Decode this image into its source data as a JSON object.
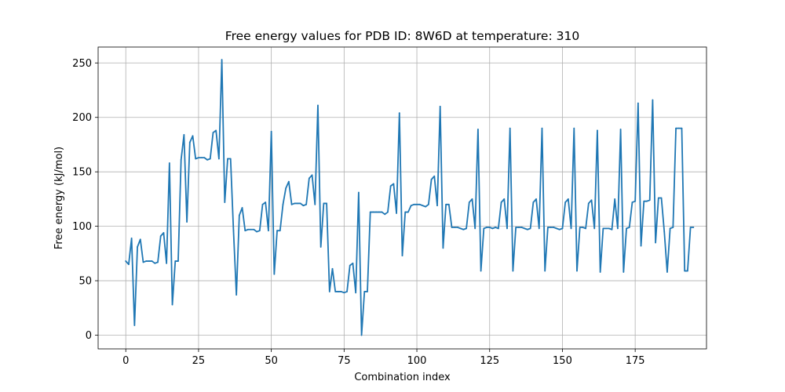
{
  "chart_data": {
    "type": "line",
    "title": "Free energy values for PDB ID: 8W6D at temperature: 310",
    "xlabel": "Combination index",
    "ylabel": "Free energy (kJ/mol)",
    "xlim": [
      -9.5,
      199.5
    ],
    "ylim": [
      -12.6,
      264.6
    ],
    "xticks": [
      0,
      25,
      50,
      75,
      100,
      125,
      150,
      175
    ],
    "yticks": [
      0,
      50,
      100,
      150,
      200,
      250
    ],
    "grid": true,
    "line_color": "#1f77b4",
    "series": [
      {
        "values": [
          68,
          65,
          89,
          9,
          81,
          88,
          67,
          68,
          68,
          68,
          66,
          67,
          91,
          94,
          66,
          158,
          28,
          68,
          68,
          161,
          184,
          104,
          177,
          183,
          162,
          163,
          163,
          163,
          161,
          162,
          186,
          188,
          162,
          253,
          122,
          162,
          162,
          96,
          37,
          110,
          117,
          96,
          97,
          97,
          97,
          95,
          96,
          120,
          122,
          96,
          187,
          56,
          96,
          96,
          120,
          135,
          141,
          120,
          121,
          121,
          121,
          119,
          120,
          144,
          147,
          120,
          211,
          81,
          121,
          121,
          40,
          61,
          40,
          40,
          40,
          39,
          40,
          64,
          66,
          39,
          131,
          0,
          40,
          40,
          113,
          113,
          113,
          113,
          113,
          111,
          113,
          137,
          139,
          112,
          204,
          73,
          113,
          113,
          119,
          120,
          120,
          120,
          119,
          118,
          120,
          143,
          146,
          119,
          210,
          80,
          120,
          120,
          99,
          99,
          99,
          98,
          97,
          98,
          122,
          125,
          98,
          189,
          59,
          98,
          99,
          99,
          98,
          99,
          98,
          122,
          125,
          98,
          190,
          59,
          99,
          99,
          99,
          98,
          97,
          98,
          122,
          125,
          98,
          190,
          59,
          99,
          99,
          99,
          98,
          97,
          98,
          122,
          125,
          98,
          190,
          59,
          99,
          99,
          98,
          121,
          124,
          98,
          188,
          58,
          98,
          98,
          98,
          97,
          125,
          98,
          189,
          58,
          98,
          99,
          122,
          123,
          213,
          82,
          123,
          123,
          124,
          216,
          85,
          126,
          126,
          95,
          58,
          98,
          99,
          190,
          190,
          190,
          59,
          59,
          99,
          99
        ]
      }
    ]
  }
}
